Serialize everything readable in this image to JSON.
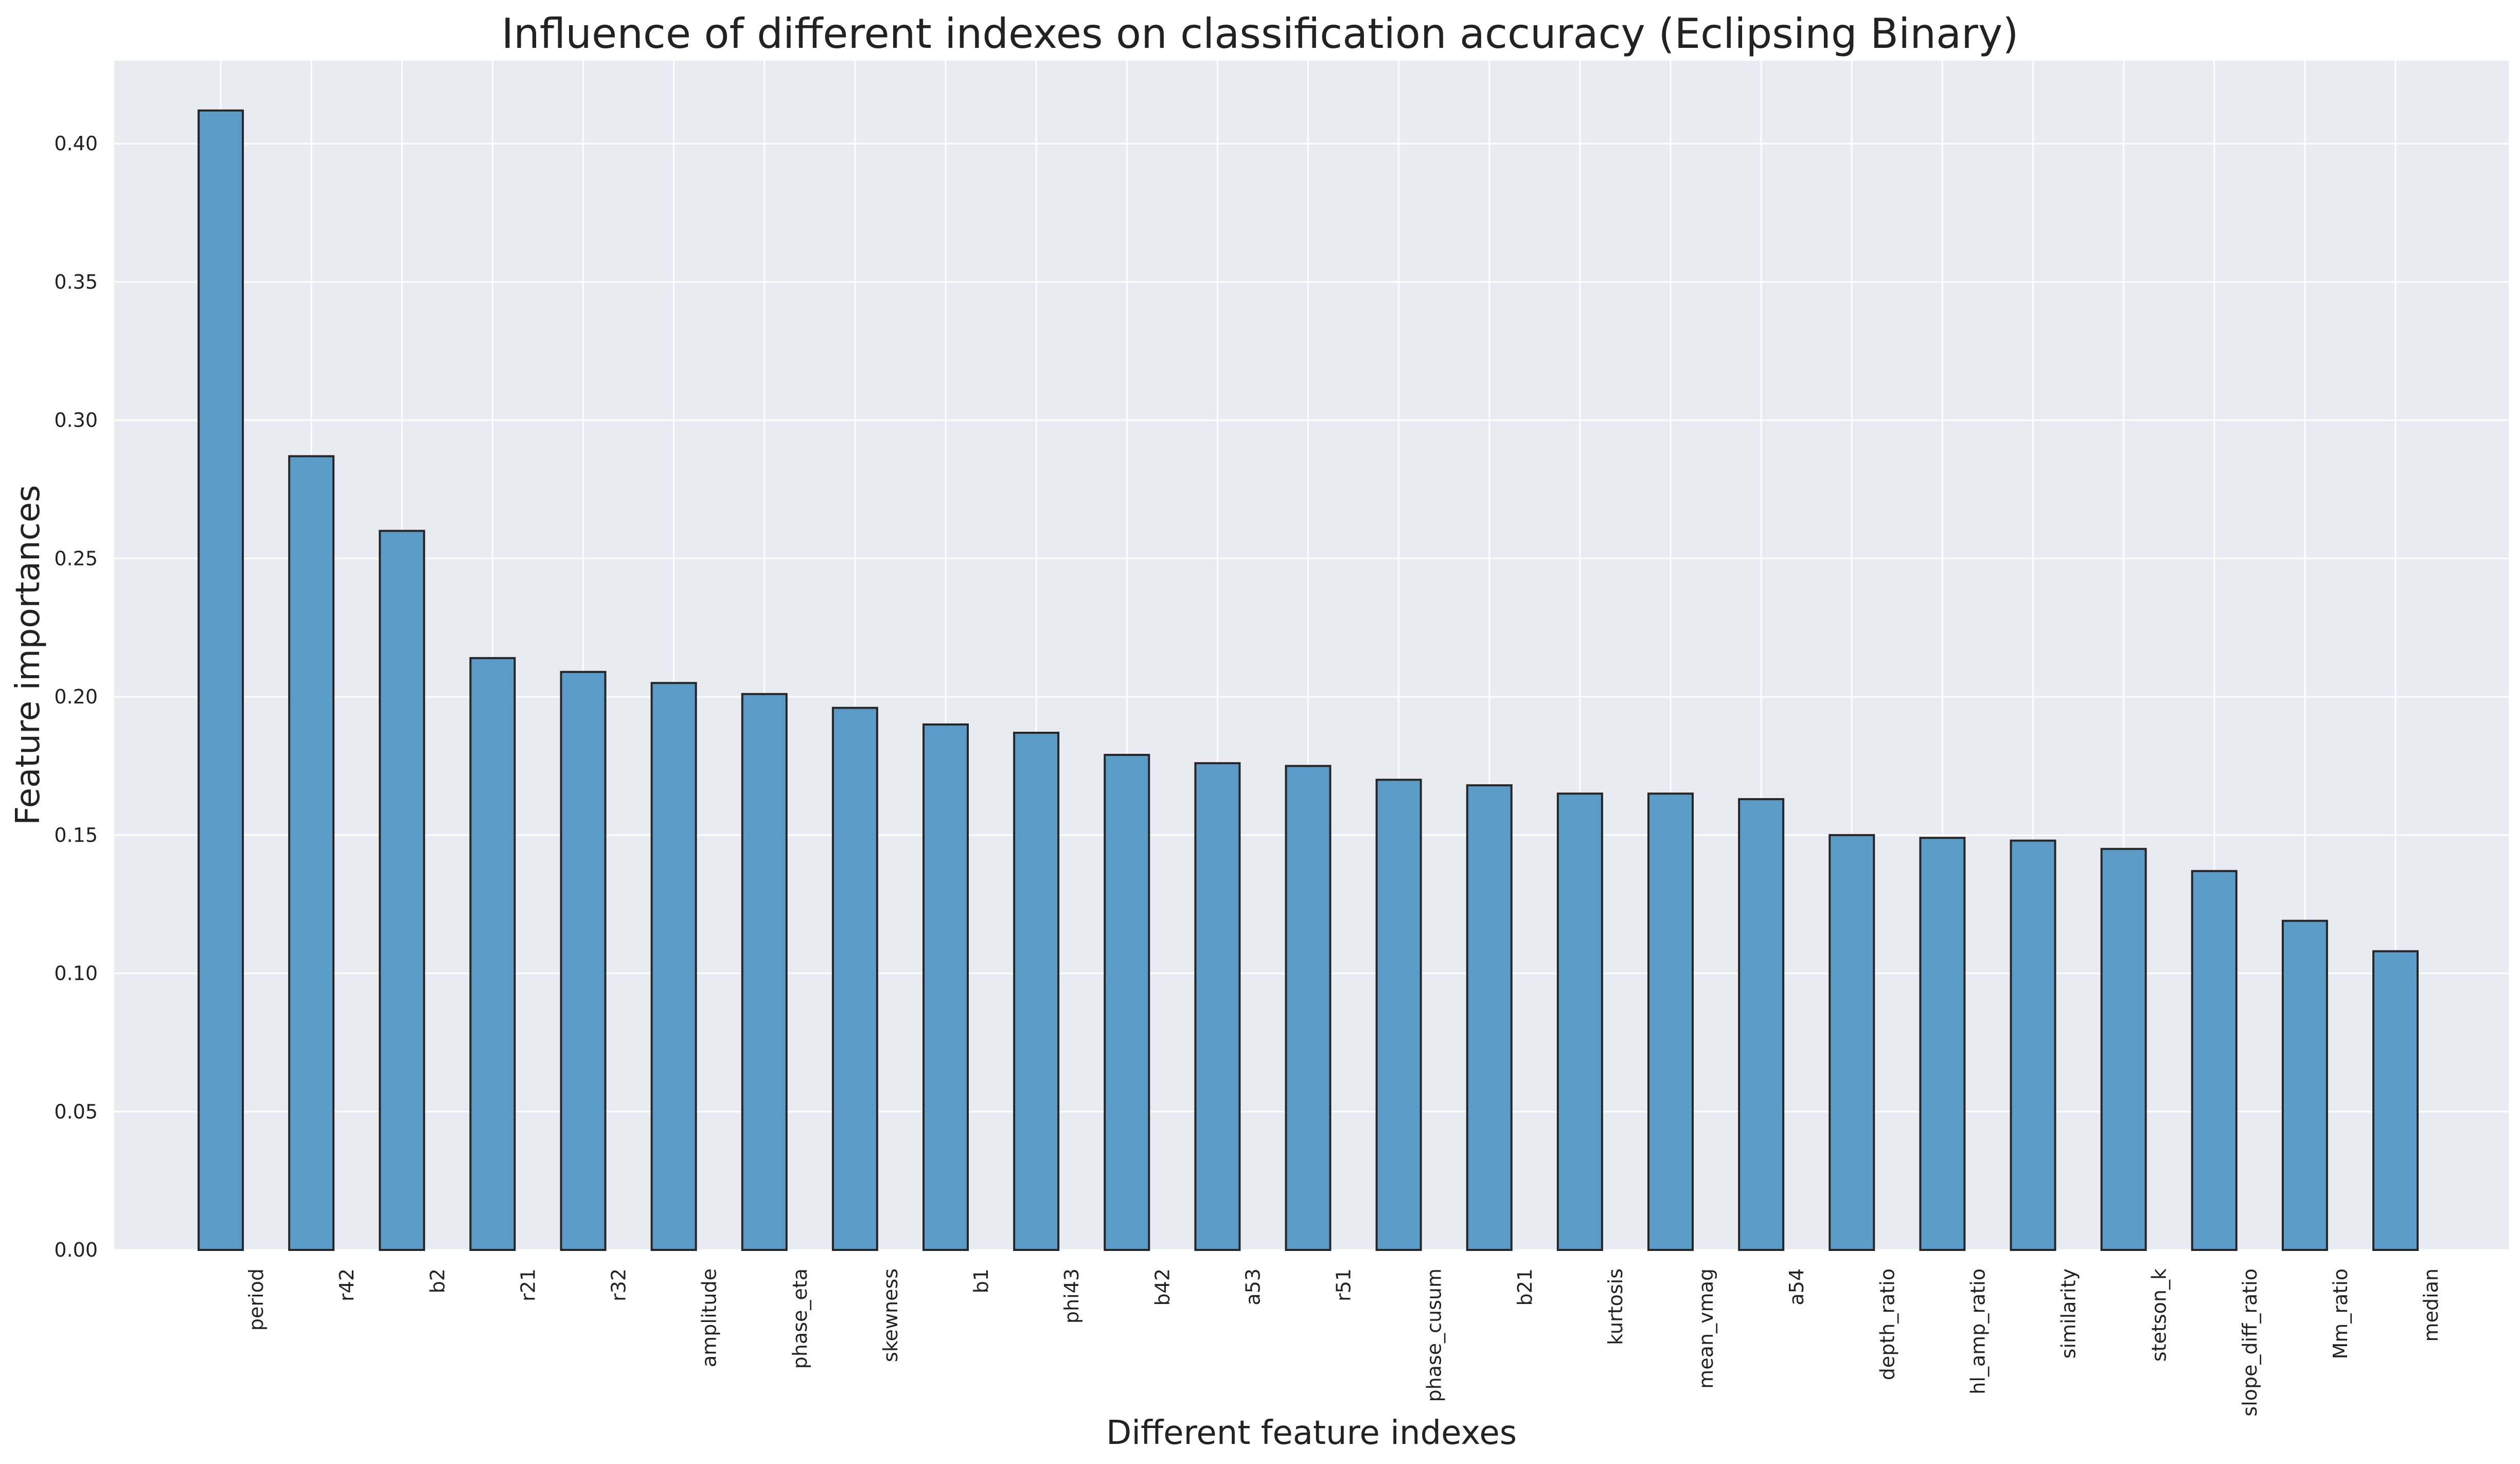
{
  "chart_data": {
    "type": "bar",
    "title": "Influence of different indexes on classification accuracy (Eclipsing Binary)",
    "xlabel": "Different feature indexes",
    "ylabel": "Feature importances",
    "ylim": [
      0,
      0.43
    ],
    "yticks": [
      "0.00",
      "0.05",
      "0.10",
      "0.15",
      "0.20",
      "0.25",
      "0.30",
      "0.35",
      "0.40"
    ],
    "grid": true,
    "colors": {
      "bar": "#5b9bc8",
      "bar_edge": "#262626",
      "plot_bg": "#eaeaf2",
      "grid": "#ffffff"
    },
    "categories": [
      "period",
      "r42",
      "b2",
      "r21",
      "r32",
      "amplitude",
      "phase_eta",
      "skewness",
      "b1",
      "phi43",
      "b42",
      "a53",
      "r51",
      "phase_cusum",
      "b21",
      "kurtosis",
      "mean_vmag",
      "a54",
      "depth_ratio",
      "hl_amp_ratio",
      "similarity",
      "stetson_k",
      "slope_diff_ratio",
      "Mm_ratio",
      "median"
    ],
    "values": [
      0.412,
      0.287,
      0.26,
      0.214,
      0.209,
      0.205,
      0.201,
      0.196,
      0.19,
      0.187,
      0.179,
      0.176,
      0.175,
      0.17,
      0.168,
      0.165,
      0.165,
      0.163,
      0.15,
      0.149,
      0.148,
      0.145,
      0.137,
      0.119,
      0.108
    ]
  }
}
